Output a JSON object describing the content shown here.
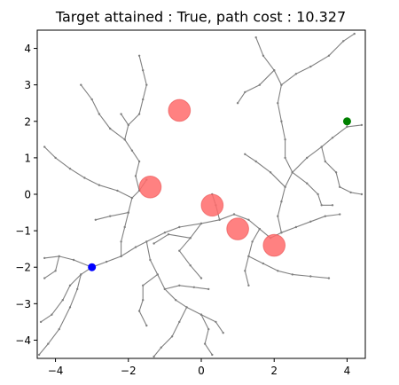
{
  "chart_data": {
    "type": "scatter",
    "title": "Target attained : True, path cost : 10.327",
    "xlabel": "",
    "ylabel": "",
    "xlim": [
      -4.5,
      4.5
    ],
    "ylim": [
      -4.5,
      4.5
    ],
    "xticks": [
      -4,
      -2,
      0,
      2,
      4
    ],
    "yticks": [
      -4,
      -3,
      -2,
      -1,
      0,
      1,
      2,
      3,
      4
    ],
    "xtick_labels": [
      "−4",
      "−2",
      "0",
      "2",
      "4"
    ],
    "ytick_labels": [
      "−4",
      "−3",
      "−2",
      "−1",
      "0",
      "1",
      "2",
      "3",
      "4"
    ],
    "grid": false,
    "obstacles": [
      {
        "x": -0.6,
        "y": 2.3,
        "r": 0.3
      },
      {
        "x": -1.4,
        "y": 0.2,
        "r": 0.3
      },
      {
        "x": 0.3,
        "y": -0.3,
        "r": 0.3
      },
      {
        "x": 1.0,
        "y": -0.95,
        "r": 0.3
      },
      {
        "x": 2.0,
        "y": -1.4,
        "r": 0.3
      }
    ],
    "start": {
      "x": -3.0,
      "y": -2.0
    },
    "goal": {
      "x": 4.0,
      "y": 2.0
    },
    "colors": {
      "tree": "#808080",
      "obstacle": "#ff6b6b",
      "start": "#0000ff",
      "goal": "#008000"
    },
    "tree_branches": [
      [
        [
          -3.0,
          -2.0
        ],
        [
          -2.6,
          -1.85
        ],
        [
          -2.2,
          -1.7
        ],
        [
          -1.8,
          -1.45
        ],
        [
          -1.5,
          -1.3
        ],
        [
          -1.0,
          -1.05
        ],
        [
          -0.6,
          -0.9
        ],
        [
          0.0,
          -0.8
        ],
        [
          0.5,
          -0.7
        ],
        [
          0.9,
          -0.55
        ]
      ],
      [
        [
          -2.2,
          -1.7
        ],
        [
          -2.2,
          -1.3
        ],
        [
          -2.1,
          -0.9
        ],
        [
          -2.0,
          -0.5
        ],
        [
          -1.9,
          -0.1
        ],
        [
          -1.7,
          0.1
        ],
        [
          -1.5,
          0.4
        ]
      ],
      [
        [
          -1.9,
          -0.1
        ],
        [
          -2.3,
          0.1
        ],
        [
          -2.8,
          0.25
        ],
        [
          -3.2,
          0.45
        ],
        [
          -3.6,
          0.7
        ],
        [
          -4.0,
          1.0
        ],
        [
          -4.3,
          1.3
        ]
      ],
      [
        [
          -2.0,
          -0.5
        ],
        [
          -2.5,
          -0.6
        ],
        [
          -2.9,
          -0.7
        ]
      ],
      [
        [
          -1.7,
          0.1
        ],
        [
          -1.8,
          0.5
        ],
        [
          -1.7,
          0.9
        ],
        [
          -1.9,
          1.2
        ],
        [
          -2.1,
          1.5
        ],
        [
          -2.0,
          1.9
        ],
        [
          -2.2,
          2.2
        ]
      ],
      [
        [
          -2.0,
          1.9
        ],
        [
          -1.7,
          2.2
        ],
        [
          -1.6,
          2.6
        ],
        [
          -1.5,
          3.0
        ],
        [
          -1.6,
          3.4
        ],
        [
          -1.7,
          3.8
        ]
      ],
      [
        [
          -2.1,
          1.5
        ],
        [
          -2.5,
          1.8
        ],
        [
          -2.8,
          2.2
        ],
        [
          -3.0,
          2.6
        ],
        [
          -3.3,
          3.0
        ]
      ],
      [
        [
          -3.0,
          -2.0
        ],
        [
          -3.3,
          -2.2
        ],
        [
          -3.6,
          -2.5
        ],
        [
          -3.8,
          -2.9
        ],
        [
          -4.1,
          -3.3
        ],
        [
          -4.4,
          -3.5
        ]
      ],
      [
        [
          -3.3,
          -2.2
        ],
        [
          -3.4,
          -2.6
        ],
        [
          -3.6,
          -3.1
        ],
        [
          -3.9,
          -3.7
        ],
        [
          -4.2,
          -4.1
        ],
        [
          -4.45,
          -4.4
        ]
      ],
      [
        [
          -3.0,
          -2.0
        ],
        [
          -3.5,
          -1.8
        ],
        [
          -3.9,
          -1.7
        ],
        [
          -4.3,
          -1.75
        ]
      ],
      [
        [
          -3.9,
          -1.7
        ],
        [
          -4.0,
          -2.1
        ],
        [
          -4.3,
          -2.3
        ]
      ],
      [
        [
          -1.5,
          -1.3
        ],
        [
          -1.4,
          -1.8
        ],
        [
          -1.2,
          -2.2
        ],
        [
          -1.0,
          -2.6
        ],
        [
          -0.7,
          -2.9
        ],
        [
          -0.4,
          -3.1
        ],
        [
          0.0,
          -3.3
        ],
        [
          0.4,
          -3.5
        ],
        [
          0.6,
          -3.8
        ]
      ],
      [
        [
          -1.2,
          -2.2
        ],
        [
          -1.6,
          -2.5
        ],
        [
          -1.6,
          -2.9
        ],
        [
          -1.7,
          -3.2
        ],
        [
          -1.5,
          -3.6
        ]
      ],
      [
        [
          -0.4,
          -3.1
        ],
        [
          -0.6,
          -3.5
        ],
        [
          -0.8,
          -3.9
        ],
        [
          -1.1,
          -4.2
        ],
        [
          -1.3,
          -4.45
        ]
      ],
      [
        [
          0.0,
          -3.3
        ],
        [
          0.2,
          -3.7
        ],
        [
          0.1,
          -4.1
        ],
        [
          0.3,
          -4.4
        ]
      ],
      [
        [
          -1.0,
          -2.6
        ],
        [
          -0.6,
          -2.5
        ],
        [
          -0.2,
          -2.55
        ],
        [
          0.2,
          -2.6
        ]
      ],
      [
        [
          0.0,
          -0.8
        ],
        [
          -0.3,
          -1.2
        ],
        [
          -0.6,
          -1.55
        ],
        [
          -0.3,
          -1.95
        ],
        [
          0.0,
          -2.3
        ]
      ],
      [
        [
          -0.3,
          -1.2
        ],
        [
          -0.9,
          -1.1
        ],
        [
          -1.3,
          -1.35
        ]
      ],
      [
        [
          0.9,
          -0.55
        ],
        [
          1.3,
          -0.7
        ],
        [
          1.6,
          -0.95
        ],
        [
          1.9,
          -1.2
        ],
        [
          2.2,
          -1.05
        ],
        [
          2.6,
          -0.9
        ],
        [
          3.0,
          -0.75
        ],
        [
          3.4,
          -0.6
        ],
        [
          3.8,
          -0.55
        ]
      ],
      [
        [
          1.6,
          -0.95
        ],
        [
          1.4,
          -1.3
        ],
        [
          1.3,
          -1.7
        ],
        [
          1.2,
          -2.1
        ],
        [
          1.3,
          -2.5
        ]
      ],
      [
        [
          1.3,
          -1.7
        ],
        [
          1.7,
          -1.9
        ],
        [
          2.1,
          -2.1
        ],
        [
          2.5,
          -2.2
        ],
        [
          3.0,
          -2.25
        ],
        [
          3.5,
          -2.3
        ]
      ],
      [
        [
          2.2,
          -1.05
        ],
        [
          2.1,
          -0.6
        ],
        [
          2.2,
          -0.2
        ],
        [
          2.3,
          0.2
        ],
        [
          2.5,
          0.6
        ],
        [
          2.9,
          1.0
        ],
        [
          3.3,
          1.3
        ],
        [
          3.6,
          1.55
        ],
        [
          4.0,
          1.85
        ],
        [
          4.4,
          1.9
        ]
      ],
      [
        [
          2.3,
          0.2
        ],
        [
          1.9,
          0.6
        ],
        [
          1.5,
          0.9
        ],
        [
          1.2,
          1.1
        ]
      ],
      [
        [
          2.5,
          0.6
        ],
        [
          2.3,
          1.0
        ],
        [
          2.3,
          1.5
        ],
        [
          2.2,
          2.0
        ],
        [
          2.1,
          2.5
        ],
        [
          2.2,
          3.0
        ],
        [
          2.0,
          3.4
        ],
        [
          1.7,
          3.8
        ],
        [
          1.5,
          4.3
        ]
      ],
      [
        [
          2.2,
          3.0
        ],
        [
          2.6,
          3.3
        ],
        [
          3.0,
          3.5
        ],
        [
          3.5,
          3.8
        ],
        [
          3.9,
          4.2
        ],
        [
          4.2,
          4.4
        ]
      ],
      [
        [
          2.0,
          3.4
        ],
        [
          1.6,
          3.0
        ],
        [
          1.2,
          2.8
        ],
        [
          1.0,
          2.5
        ]
      ],
      [
        [
          3.3,
          1.3
        ],
        [
          3.4,
          0.9
        ],
        [
          3.7,
          0.6
        ],
        [
          3.8,
          0.2
        ],
        [
          4.1,
          0.05
        ],
        [
          4.4,
          0.0
        ]
      ],
      [
        [
          2.5,
          0.6
        ],
        [
          2.9,
          0.3
        ],
        [
          3.2,
          0.0
        ],
        [
          3.3,
          -0.3
        ],
        [
          3.6,
          -0.3
        ]
      ],
      [
        [
          0.5,
          -0.7
        ],
        [
          0.4,
          -0.3
        ],
        [
          0.3,
          0.0
        ]
      ],
      [
        [
          4.0,
          2.0
        ],
        [
          4.0,
          1.85
        ]
      ]
    ]
  }
}
